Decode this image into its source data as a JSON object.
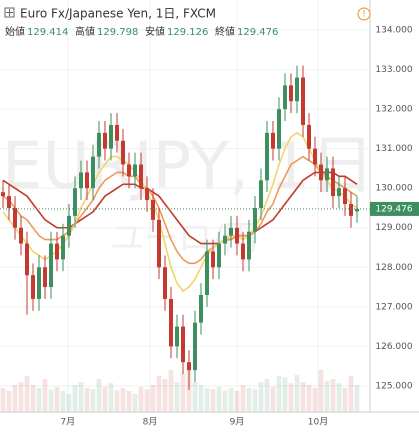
{
  "chart_data": {
    "type": "candlestick",
    "title": "Euro Fx/Japanese Yen, 1日, FXCM",
    "watermark": "EURJPY, 1日",
    "watermark_sub": "ユーロ/円",
    "ohlc_labels": [
      "始値",
      "高値",
      "安値",
      "終値"
    ],
    "up_color": "#3d8f5f",
    "down_color": "#c43a31",
    "open": [
      129.9,
      129.8,
      129.5,
      129.0,
      128.6,
      127.8,
      127.2,
      128.0,
      127.5,
      128.6,
      128.2,
      128.8,
      129.3,
      130.0,
      130.4,
      130.0,
      130.8,
      131.4,
      131.0,
      131.6,
      131.2,
      130.6,
      130.3,
      130.6,
      130.0,
      129.7,
      129.2,
      128.0,
      127.2,
      126.0,
      126.5,
      125.6,
      125.4,
      126.6,
      127.3,
      128.4,
      128.0,
      128.6,
      128.8,
      129.0,
      128.6,
      128.2,
      128.9,
      129.5,
      130.2,
      131.4,
      131.0,
      132.0,
      132.6,
      132.2,
      132.8,
      131.6,
      131.0,
      130.6,
      130.2,
      130.5,
      129.8,
      130.0,
      129.6,
      129.414
    ],
    "high": [
      130.2,
      130.1,
      129.8,
      129.3,
      128.9,
      128.1,
      128.3,
      128.3,
      128.9,
      128.9,
      129.1,
      129.6,
      130.3,
      130.7,
      130.7,
      131.1,
      131.7,
      131.7,
      131.9,
      131.9,
      131.5,
      130.9,
      130.9,
      130.9,
      130.3,
      130.0,
      129.5,
      128.3,
      127.5,
      126.8,
      126.8,
      125.9,
      126.9,
      127.6,
      128.7,
      128.7,
      128.9,
      129.1,
      129.3,
      129.3,
      128.9,
      129.2,
      129.8,
      130.5,
      131.7,
      131.7,
      132.3,
      132.9,
      132.9,
      133.1,
      133.1,
      131.9,
      131.3,
      130.9,
      130.8,
      130.8,
      130.3,
      130.3,
      129.9,
      129.798
    ],
    "low": [
      129.5,
      129.2,
      128.7,
      128.3,
      126.8,
      126.9,
      126.9,
      127.2,
      127.2,
      127.9,
      127.9,
      128.5,
      129.0,
      129.7,
      129.7,
      129.7,
      130.5,
      130.7,
      130.7,
      130.9,
      130.3,
      130.0,
      130.0,
      129.7,
      129.4,
      128.9,
      127.7,
      126.9,
      125.7,
      125.7,
      125.3,
      124.9,
      125.1,
      126.3,
      127.0,
      127.7,
      127.7,
      128.3,
      128.5,
      128.3,
      127.9,
      127.9,
      128.6,
      129.2,
      129.9,
      130.7,
      130.7,
      131.7,
      131.9,
      131.9,
      131.3,
      130.7,
      130.3,
      129.9,
      129.9,
      129.5,
      129.5,
      129.3,
      129.0,
      129.126
    ],
    "close": [
      129.8,
      129.5,
      129.0,
      128.6,
      127.8,
      127.2,
      128.0,
      127.5,
      128.6,
      128.2,
      128.8,
      129.3,
      130.0,
      130.4,
      130.0,
      130.8,
      131.4,
      131.0,
      131.6,
      131.2,
      130.6,
      130.3,
      130.6,
      130.0,
      129.7,
      129.2,
      128.0,
      127.2,
      126.0,
      126.5,
      125.6,
      125.4,
      126.6,
      127.3,
      128.4,
      128.0,
      128.6,
      128.8,
      129.0,
      128.6,
      128.2,
      128.9,
      129.5,
      130.2,
      131.4,
      131.0,
      132.0,
      132.6,
      132.2,
      132.8,
      131.6,
      131.0,
      130.6,
      130.2,
      130.5,
      129.8,
      130.0,
      129.6,
      129.3,
      129.476
    ],
    "volume": [
      40,
      35,
      45,
      50,
      60,
      45,
      40,
      55,
      38,
      42,
      35,
      30,
      45,
      50,
      40,
      38,
      55,
      42,
      48,
      36,
      40,
      35,
      30,
      42,
      38,
      45,
      60,
      55,
      70,
      50,
      65,
      75,
      50,
      45,
      40,
      38,
      42,
      36,
      40,
      35,
      45,
      40,
      38,
      50,
      55,
      42,
      60,
      58,
      48,
      62,
      50,
      45,
      40,
      70,
      52,
      55,
      48,
      40,
      60,
      45
    ],
    "series": [
      {
        "color": "#c0392b",
        "values": [
          130.2,
          130.1,
          130.0,
          129.9,
          129.8,
          129.6,
          129.4,
          129.2,
          129.1,
          129.0,
          129.0,
          129.0,
          129.1,
          129.2,
          129.3,
          129.4,
          129.6,
          129.8,
          129.9,
          130.0,
          130.1,
          130.1,
          130.1,
          130.0,
          130.0,
          129.9,
          129.8,
          129.6,
          129.4,
          129.2,
          129.0,
          128.8,
          128.7,
          128.6,
          128.6,
          128.6,
          128.6,
          128.7,
          128.7,
          128.8,
          128.8,
          128.8,
          128.9,
          129.0,
          129.1,
          129.2,
          129.4,
          129.6,
          129.8,
          130.0,
          130.2,
          130.3,
          130.4,
          130.4,
          130.4,
          130.4,
          130.3,
          130.3,
          130.2,
          130.1
        ]
      },
      {
        "color": "#ef9a5a",
        "values": [
          129.8,
          129.7,
          129.5,
          129.3,
          129.2,
          129.0,
          128.8,
          128.7,
          128.7,
          128.7,
          128.8,
          128.9,
          129.1,
          129.3,
          129.5,
          129.7,
          130.0,
          130.2,
          130.3,
          130.4,
          130.4,
          130.3,
          130.3,
          130.1,
          130.0,
          129.8,
          129.5,
          129.1,
          128.7,
          128.4,
          128.2,
          128.1,
          128.1,
          128.2,
          128.4,
          128.5,
          128.6,
          128.7,
          128.7,
          128.8,
          128.8,
          128.8,
          128.9,
          129.1,
          129.4,
          129.6,
          130.0,
          130.3,
          130.6,
          130.7,
          130.8,
          130.7,
          130.6,
          130.4,
          130.3,
          130.2,
          130.1,
          130.0,
          129.9,
          129.8
        ]
      },
      {
        "color": "#f3d36b",
        "values": [
          129.4,
          129.2,
          129.0,
          128.8,
          128.6,
          128.4,
          128.3,
          128.2,
          128.3,
          128.4,
          128.6,
          128.8,
          129.1,
          129.5,
          129.8,
          130.1,
          130.4,
          130.6,
          130.8,
          130.8,
          130.7,
          130.6,
          130.4,
          130.2,
          129.9,
          129.6,
          129.2,
          128.6,
          128.0,
          127.6,
          127.4,
          127.5,
          127.7,
          128.0,
          128.3,
          128.5,
          128.6,
          128.7,
          128.8,
          128.8,
          128.7,
          128.8,
          129.0,
          129.3,
          129.7,
          130.1,
          130.6,
          131.0,
          131.3,
          131.4,
          131.3,
          131.0,
          130.7,
          130.4,
          130.2,
          130.0,
          129.9,
          129.8,
          129.6,
          129.5
        ]
      }
    ],
    "ylim": [
      124.34,
      134.76
    ],
    "yticks": [
      {
        "value": 125,
        "label": "125.000"
      },
      {
        "value": 126,
        "label": "126.000"
      },
      {
        "value": 127,
        "label": "127.000"
      },
      {
        "value": 128,
        "label": "128.000"
      },
      {
        "value": 129,
        "label": "129.000"
      },
      {
        "value": 130,
        "label": "130.000"
      },
      {
        "value": 131,
        "label": "131.000"
      },
      {
        "value": 132,
        "label": "132.000"
      },
      {
        "value": 133,
        "label": "133.000"
      },
      {
        "value": 134,
        "label": "134.000"
      }
    ],
    "xticks": [
      {
        "value": 10.8,
        "label": "7月"
      },
      {
        "value": 24.5,
        "label": "8月"
      },
      {
        "value": 39,
        "label": "9月"
      },
      {
        "value": 52.5,
        "label": "10月"
      }
    ],
    "grid": true
  }
}
